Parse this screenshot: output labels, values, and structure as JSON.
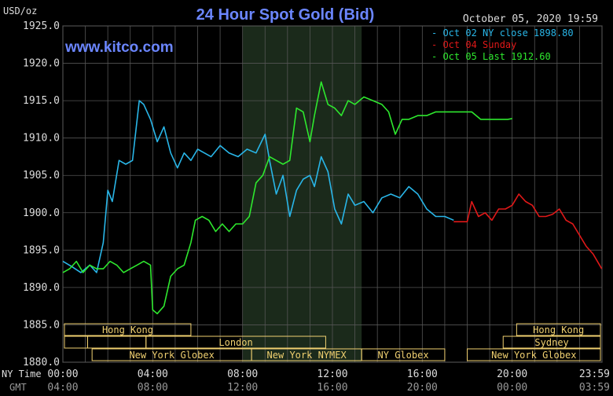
{
  "chart_data": {
    "type": "line",
    "title": "24 Hour Spot Gold (Bid)",
    "watermark": "www.kitco.com",
    "timestamp": "October 05, 2020 19:59",
    "ylabel": "USD/oz",
    "ylim": [
      1880,
      1925
    ],
    "y_ticks": [
      "1925.0",
      "1920.0",
      "1915.0",
      "1910.0",
      "1905.0",
      "1900.0",
      "1895.0",
      "1890.0",
      "1885.0",
      "1880.0"
    ],
    "xlim": [
      0,
      24
    ],
    "time_rows": [
      {
        "label": "NY Time",
        "ticks": [
          "00:00",
          "04:00",
          "08:00",
          "12:00",
          "16:00",
          "20:00",
          "23:59"
        ]
      },
      {
        "label": "GMT",
        "ticks": [
          "04:00",
          "08:00",
          "12:00",
          "16:00",
          "20:00",
          "00:00",
          "03:59"
        ]
      }
    ],
    "grid": true,
    "legend_position": "top-right",
    "colors": {
      "oct02": "#29b6e8",
      "oct04": "#e01818",
      "oct05": "#2ee82e",
      "grid": "#555555",
      "shade": "#1b2a1b",
      "title": "#6b86ff",
      "market": "#f0d070"
    },
    "series": [
      {
        "name": "Oct 02 NY close 1898.80",
        "color": "#29b6e8",
        "x": [
          0.0,
          0.4,
          0.8,
          1.2,
          1.5,
          1.8,
          2.0,
          2.2,
          2.5,
          2.8,
          3.1,
          3.4,
          3.6,
          3.9,
          4.2,
          4.5,
          4.8,
          5.1,
          5.4,
          5.7,
          6.0,
          6.3,
          6.6,
          7.0,
          7.4,
          7.8,
          8.2,
          8.6,
          9.0,
          9.2,
          9.5,
          9.8,
          10.1,
          10.4,
          10.7,
          11.0,
          11.2,
          11.5,
          11.8,
          12.1,
          12.4,
          12.7,
          13.0,
          13.4,
          13.8,
          14.2,
          14.6,
          15.0,
          15.4,
          15.8,
          16.2,
          16.6,
          17.0,
          17.4
        ],
        "y": [
          1893.5,
          1892.8,
          1892.0,
          1893.0,
          1892.0,
          1896.0,
          1903.0,
          1901.5,
          1907.0,
          1906.5,
          1907.0,
          1915.0,
          1914.5,
          1912.5,
          1909.5,
          1911.5,
          1908.0,
          1906.0,
          1908.0,
          1907.0,
          1908.5,
          1908.0,
          1907.5,
          1909.0,
          1908.0,
          1907.5,
          1908.5,
          1908.0,
          1910.5,
          1907.0,
          1902.5,
          1905.0,
          1899.5,
          1903.0,
          1904.5,
          1905.0,
          1903.5,
          1907.5,
          1905.5,
          1900.5,
          1898.5,
          1902.5,
          1901.0,
          1901.5,
          1900.0,
          1902.0,
          1902.5,
          1902.0,
          1903.5,
          1902.5,
          1900.5,
          1899.5,
          1899.5,
          1899.0
        ]
      },
      {
        "name": "Oct 04 Sunday",
        "color": "#e01818",
        "x": [
          17.4,
          17.6,
          17.8,
          18.0,
          18.2,
          18.5,
          18.8,
          19.1,
          19.4,
          19.7,
          20.0,
          20.3,
          20.6,
          20.9,
          21.2,
          21.5,
          21.8,
          22.1,
          22.4,
          22.7,
          23.0,
          23.3,
          23.6,
          23.99
        ],
        "y": [
          1898.8,
          1898.8,
          1898.8,
          1898.8,
          1901.5,
          1899.5,
          1900.0,
          1899.0,
          1900.5,
          1900.5,
          1901.0,
          1902.5,
          1901.5,
          1901.0,
          1899.5,
          1899.5,
          1899.8,
          1900.5,
          1899.0,
          1898.5,
          1897.0,
          1895.5,
          1894.5,
          1892.5
        ]
      },
      {
        "name": "Oct 05 Last 1912.60",
        "color": "#2ee82e",
        "x": [
          0.0,
          0.3,
          0.6,
          0.9,
          1.2,
          1.5,
          1.8,
          2.1,
          2.4,
          2.7,
          3.0,
          3.3,
          3.6,
          3.9,
          4.0,
          4.2,
          4.5,
          4.8,
          5.1,
          5.4,
          5.7,
          5.9,
          6.2,
          6.5,
          6.8,
          7.1,
          7.4,
          7.7,
          8.0,
          8.3,
          8.6,
          8.9,
          9.2,
          9.5,
          9.8,
          10.1,
          10.4,
          10.7,
          11.0,
          11.2,
          11.5,
          11.8,
          12.1,
          12.4,
          12.7,
          13.0,
          13.4,
          13.8,
          14.2,
          14.5,
          14.8,
          15.1,
          15.4,
          15.8,
          16.2,
          16.6,
          17.0,
          17.4,
          17.8,
          18.2,
          18.6,
          19.0,
          19.4,
          19.8,
          20.0
        ],
        "y": [
          1892.0,
          1892.5,
          1893.5,
          1892.0,
          1893.0,
          1892.5,
          1892.5,
          1893.5,
          1893.0,
          1892.0,
          1892.5,
          1893.0,
          1893.5,
          1893.0,
          1887.0,
          1886.5,
          1887.5,
          1891.5,
          1892.5,
          1893.0,
          1896.0,
          1899.0,
          1899.5,
          1899.0,
          1897.5,
          1898.5,
          1897.5,
          1898.5,
          1898.5,
          1899.5,
          1904.0,
          1905.0,
          1907.5,
          1907.0,
          1906.5,
          1907.0,
          1914.0,
          1913.5,
          1909.5,
          1913.0,
          1917.5,
          1914.5,
          1914.0,
          1913.0,
          1915.0,
          1914.5,
          1915.5,
          1915.0,
          1914.5,
          1913.5,
          1910.5,
          1912.5,
          1912.5,
          1913.0,
          1913.0,
          1913.5,
          1913.5,
          1913.5,
          1913.5,
          1913.5,
          1912.5,
          1912.5,
          1912.5,
          1912.5,
          1912.6
        ]
      }
    ],
    "shaded_region": [
      8.0,
      13.3
    ],
    "market_bars": [
      {
        "label": "Hong Kong",
        "start": -1.5,
        "end": 5.7,
        "row": 0
      },
      {
        "label": "",
        "start": -1.5,
        "end": 1.1,
        "row": 1
      },
      {
        "label": "London",
        "start": 3.7,
        "end": 11.7,
        "row": 1
      },
      {
        "label": "",
        "start": 1.1,
        "end": 3.7,
        "row": 1
      },
      {
        "label": "New York Globex",
        "start": 1.3,
        "end": 8.4,
        "row": 2
      },
      {
        "label": "New York NYMEX",
        "start": 8.4,
        "end": 13.3,
        "row": 2
      },
      {
        "label": "NY Globex",
        "start": 13.3,
        "end": 17.0,
        "row": 2
      },
      {
        "label": "Hong Kong",
        "start": 20.2,
        "end": 25.5,
        "row": 0
      },
      {
        "label": "Sydney",
        "start": 19.6,
        "end": 25.5,
        "row": 1
      },
      {
        "label": "New York Globex",
        "start": 18.0,
        "end": 25.5,
        "row": 2
      }
    ]
  }
}
